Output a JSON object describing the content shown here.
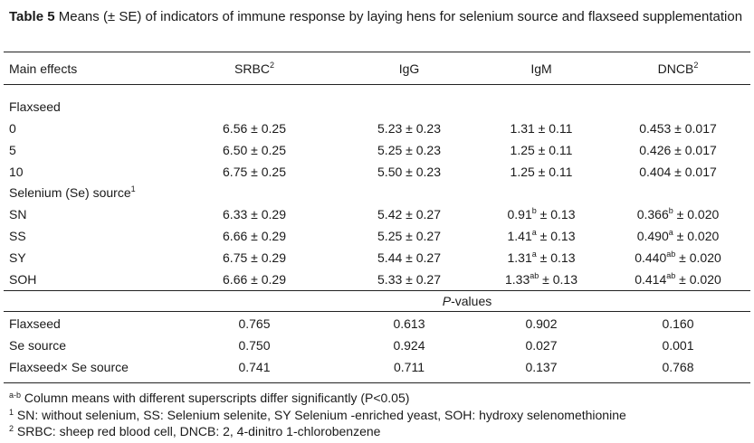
{
  "caption": {
    "label": "Table 5",
    "text": "Means (± SE) of indicators of immune response by laying hens for selenium source and flaxseed supplementation"
  },
  "header": {
    "main": "Main effects",
    "srbc": "SRBC",
    "srbc_sup": "2",
    "igg": "IgG",
    "igm": "IgM",
    "dncb": "DNCB",
    "dncb_sup": "2"
  },
  "flaxseed": {
    "title": "Flaxseed",
    "rows": [
      {
        "label": "0",
        "srbc": "6.56 ± 0.25",
        "igg": "5.23 ± 0.23",
        "igm": "1.31 ± 0.11",
        "dncb": "0.453 ± 0.017"
      },
      {
        "label": "5",
        "srbc": "6.50 ± 0.25",
        "igg": "5.25 ± 0.23",
        "igm": "1.25 ± 0.11",
        "dncb": "0.426 ± 0.017"
      },
      {
        "label": "10",
        "srbc": "6.75 ± 0.25",
        "igg": "5.50 ± 0.23",
        "igm": "1.25 ± 0.11",
        "dncb": "0.404 ± 0.017"
      }
    ]
  },
  "selenium": {
    "title": "Selenium (Se) source",
    "title_sup": "1",
    "rows": [
      {
        "label": "SN",
        "srbc": "6.33 ± 0.29",
        "igg": "5.42 ± 0.27",
        "igm_val": "0.91",
        "igm_sup": "b",
        "igm_se": " ± 0.13",
        "dncb_val": "0.366",
        "dncb_sup": "b",
        "dncb_se": " ± 0.020"
      },
      {
        "label": "SS",
        "srbc": "6.66 ± 0.29",
        "igg": "5.25 ± 0.27",
        "igm_val": "1.41",
        "igm_sup": "a",
        "igm_se": " ± 0.13",
        "dncb_val": "0.490",
        "dncb_sup": "a",
        "dncb_se": " ± 0.020"
      },
      {
        "label": "SY",
        "srbc": "6.75 ± 0.29",
        "igg": "5.44 ± 0.27",
        "igm_val": "1.31",
        "igm_sup": "a",
        "igm_se": " ± 0.13",
        "dncb_val": "0.440",
        "dncb_sup": "ab",
        "dncb_se": " ± 0.020"
      },
      {
        "label": "SOH",
        "srbc": "6.66 ± 0.29",
        "igg": "5.33 ± 0.27",
        "igm_val": "1.33",
        "igm_sup": "ab",
        "igm_se": " ± 0.13",
        "dncb_val": "0.414",
        "dncb_sup": "ab",
        "dncb_se": " ± 0.020"
      }
    ]
  },
  "pvalues": {
    "title_italic": "P",
    "title_rest": "-values",
    "rows": [
      {
        "label": "Flaxseed",
        "srbc": "0.765",
        "igg": "0.613",
        "igm": "0.902",
        "dncb": "0.160"
      },
      {
        "label": "Se source",
        "srbc": "0.750",
        "igg": "0.924",
        "igm": "0.027",
        "dncb": "0.001"
      },
      {
        "label": "Flaxseed× Se source",
        "srbc": "0.741",
        "igg": "0.711",
        "igm": "0.137",
        "dncb": "0.768"
      }
    ]
  },
  "footnotes": [
    {
      "sup": "a-b",
      "text": " Column means with different superscripts differ significantly (P<0.05)"
    },
    {
      "sup": "1",
      "text": " SN: without selenium, SS: Selenium selenite, SY Selenium -enriched yeast, SOH: hydroxy selenomethionine"
    },
    {
      "sup": "2",
      "text": " SRBC: sheep red blood cell, DNCB: 2, 4-dinitro 1-chlorobenzene"
    }
  ]
}
